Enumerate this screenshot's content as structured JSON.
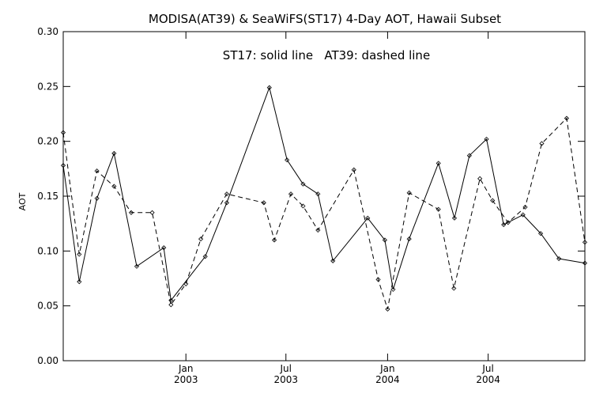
{
  "chart_data": {
    "type": "line",
    "title": "MODISA(AT39) & SeaWiFS(ST17) 4-Day AOT, Hawaii Subset",
    "annotation": "ST17: solid line   AT39: dashed line",
    "ylabel": "AOT",
    "xlabel": "",
    "ylim": [
      0.0,
      0.3
    ],
    "yticks": [
      "0.00",
      "0.05",
      "0.10",
      "0.15",
      "0.20",
      "0.25",
      "0.30"
    ],
    "xlim": [
      "2002-05-24",
      "2004-12-23"
    ],
    "xticks": [
      {
        "date": "2003-01-01",
        "line1": "Jan",
        "line2": "2003"
      },
      {
        "date": "2003-07-01",
        "line1": "Jul",
        "line2": "2003"
      },
      {
        "date": "2004-01-01",
        "line1": "Jan",
        "line2": "2004"
      },
      {
        "date": "2004-07-01",
        "line1": "Jul",
        "line2": "2004"
      }
    ],
    "grid": false,
    "series": [
      {
        "name": "ST17",
        "style": "solid",
        "color": "#000000",
        "x": [
          "2002-05-24",
          "2002-06-22",
          "2002-07-24",
          "2002-08-24",
          "2002-10-04",
          "2002-11-22",
          "2002-12-05",
          "2003-02-05",
          "2003-03-16",
          "2003-06-01",
          "2003-07-03",
          "2003-08-01",
          "2003-08-28",
          "2003-09-24",
          "2003-11-26",
          "2003-12-27",
          "2004-01-11",
          "2004-02-09",
          "2004-04-02",
          "2004-05-01",
          "2004-05-28",
          "2004-06-28",
          "2004-07-29",
          "2004-09-02",
          "2004-10-04",
          "2004-11-06",
          "2004-12-23"
        ],
        "y": [
          0.178,
          0.072,
          0.148,
          0.189,
          0.086,
          0.103,
          0.055,
          0.095,
          0.144,
          0.249,
          0.183,
          0.161,
          0.152,
          0.091,
          0.13,
          0.11,
          0.065,
          0.111,
          0.18,
          0.13,
          0.187,
          0.202,
          0.124,
          0.133,
          0.116,
          0.093,
          0.089
        ]
      },
      {
        "name": "AT39",
        "style": "dashed",
        "color": "#000000",
        "x": [
          "2002-05-24",
          "2002-06-22",
          "2002-07-24",
          "2002-08-24",
          "2002-09-24",
          "2002-11-01",
          "2002-12-05",
          "2003-01-01",
          "2003-01-28",
          "2003-03-16",
          "2003-05-22",
          "2003-06-10",
          "2003-07-10",
          "2003-08-01",
          "2003-08-28",
          "2003-11-01",
          "2003-12-15",
          "2004-01-01",
          "2004-02-09",
          "2004-04-02",
          "2004-04-30",
          "2004-06-16",
          "2004-07-09",
          "2004-08-06",
          "2004-09-06",
          "2004-10-06",
          "2004-11-20",
          "2004-12-23"
        ],
        "y": [
          0.208,
          0.097,
          0.173,
          0.159,
          0.135,
          0.135,
          0.051,
          0.07,
          0.111,
          0.152,
          0.144,
          0.11,
          0.152,
          0.141,
          0.119,
          0.174,
          0.074,
          0.047,
          0.153,
          0.138,
          0.066,
          0.166,
          0.146,
          0.126,
          0.14,
          0.198,
          0.221,
          0.108
        ]
      }
    ]
  }
}
